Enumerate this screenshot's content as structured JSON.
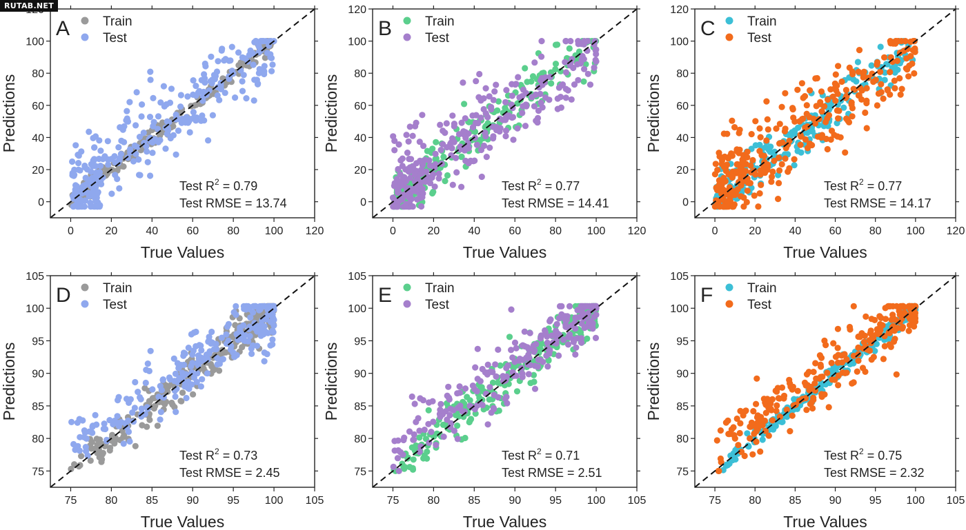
{
  "watermark": "RUTAB.NET",
  "chart_data": [
    {
      "type": "scatter",
      "panel": "A",
      "xlabel": "True Values",
      "ylabel": "Predictions",
      "xlim": [
        -10,
        120
      ],
      "ylim": [
        -10,
        120
      ],
      "xticks": [
        0,
        20,
        40,
        60,
        80,
        100,
        120
      ],
      "yticks": [
        0,
        20,
        40,
        60,
        80,
        100,
        120
      ],
      "reference_line": "y = x (dashed)",
      "series": [
        {
          "name": "Train",
          "color": "#9a9a9a",
          "style": "tight",
          "n": 240
        },
        {
          "name": "Test",
          "color": "#8fa8ee",
          "style": "wide",
          "n": 300
        }
      ],
      "stats": {
        "r2_prefix": "Test R",
        "r2_exp": "2",
        "r2_value": " = 0.79",
        "rmse": "Test RMSE = 13.74"
      }
    },
    {
      "type": "scatter",
      "panel": "B",
      "xlabel": "True Values",
      "ylabel": "Predictions",
      "xlim": [
        -10,
        120
      ],
      "ylim": [
        -10,
        120
      ],
      "xticks": [
        0,
        20,
        40,
        60,
        80,
        100,
        120
      ],
      "yticks": [
        0,
        20,
        40,
        60,
        80,
        100,
        120
      ],
      "reference_line": "y = x (dashed)",
      "series": [
        {
          "name": "Train",
          "color": "#5bcf8d",
          "style": "medium",
          "n": 240
        },
        {
          "name": "Test",
          "color": "#a57fcc",
          "style": "wide",
          "n": 300
        }
      ],
      "stats": {
        "r2_prefix": "Test R",
        "r2_exp": "2",
        "r2_value": " = 0.77",
        "rmse": "Test RMSE = 14.41"
      }
    },
    {
      "type": "scatter",
      "panel": "C",
      "xlabel": "True Values",
      "ylabel": "Predictions",
      "xlim": [
        -10,
        120
      ],
      "ylim": [
        -10,
        120
      ],
      "xticks": [
        0,
        20,
        40,
        60,
        80,
        100,
        120
      ],
      "yticks": [
        0,
        20,
        40,
        60,
        80,
        100,
        120
      ],
      "reference_line": "y = x (dashed)",
      "series": [
        {
          "name": "Train",
          "color": "#3cbfd6",
          "style": "medium",
          "n": 240
        },
        {
          "name": "Test",
          "color": "#f26b1c",
          "style": "wide",
          "n": 320
        }
      ],
      "stats": {
        "r2_prefix": "Test R",
        "r2_exp": "2",
        "r2_value": " = 0.77",
        "rmse": "Test RMSE = 14.17"
      }
    },
    {
      "type": "scatter",
      "panel": "D",
      "xlabel": "True Values",
      "ylabel": "Predictions",
      "xlim": [
        72.5,
        105
      ],
      "ylim": [
        72.5,
        105
      ],
      "xticks": [
        75,
        80,
        85,
        90,
        95,
        100,
        105
      ],
      "yticks": [
        75,
        80,
        85,
        90,
        95,
        100,
        105
      ],
      "reference_line": "y = x (dashed)",
      "series": [
        {
          "name": "Train",
          "color": "#9a9a9a",
          "style": "hi_medium",
          "n": 260
        },
        {
          "name": "Test",
          "color": "#8fa8ee",
          "style": "hi_wide",
          "n": 260
        }
      ],
      "stats": {
        "r2_prefix": "Test R",
        "r2_exp": "2",
        "r2_value": " = 0.73",
        "rmse": "Test RMSE = 2.45"
      }
    },
    {
      "type": "scatter",
      "panel": "E",
      "xlabel": "True Values",
      "ylabel": "Predictions",
      "xlim": [
        72.5,
        105
      ],
      "ylim": [
        72.5,
        105
      ],
      "xticks": [
        75,
        80,
        85,
        90,
        95,
        100,
        105
      ],
      "yticks": [
        75,
        80,
        85,
        90,
        95,
        100,
        105
      ],
      "reference_line": "y = x (dashed)",
      "series": [
        {
          "name": "Train",
          "color": "#5bcf8d",
          "style": "hi_medium",
          "n": 260
        },
        {
          "name": "Test",
          "color": "#a57fcc",
          "style": "hi_wide",
          "n": 240
        }
      ],
      "stats": {
        "r2_prefix": "Test R",
        "r2_exp": "2",
        "r2_value": " = 0.71",
        "rmse": "Test RMSE = 2.51"
      }
    },
    {
      "type": "scatter",
      "panel": "F",
      "xlabel": "True Values",
      "ylabel": "Predictions",
      "xlim": [
        72.5,
        105
      ],
      "ylim": [
        72.5,
        105
      ],
      "xticks": [
        75,
        80,
        85,
        90,
        95,
        100,
        105
      ],
      "yticks": [
        75,
        80,
        85,
        90,
        95,
        100,
        105
      ],
      "reference_line": "y = x (dashed)",
      "series": [
        {
          "name": "Train",
          "color": "#3cbfd6",
          "style": "hi_tight",
          "n": 260
        },
        {
          "name": "Test",
          "color": "#f26b1c",
          "style": "hi_wide",
          "n": 260
        }
      ],
      "stats": {
        "r2_prefix": "Test R",
        "r2_exp": "2",
        "r2_value": " = 0.75",
        "rmse": "Test RMSE = 2.32"
      }
    }
  ]
}
